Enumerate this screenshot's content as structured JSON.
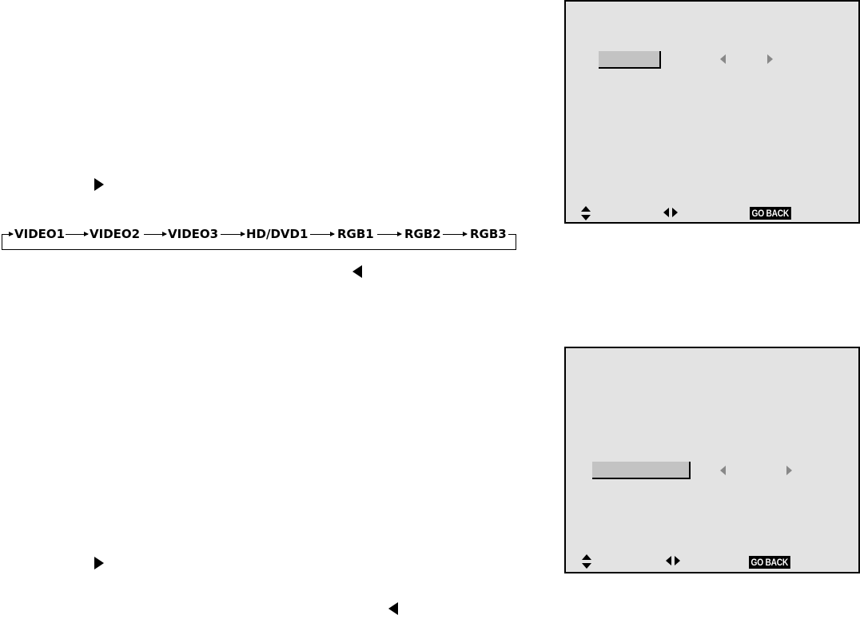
{
  "input_cycle": {
    "items": [
      "VIDEO1",
      "VIDEO2",
      "VIDEO3",
      "HD/DVD1",
      "RGB1",
      "RGB2",
      "RGB3"
    ]
  },
  "osd_top": {
    "go_back_label": "GO BACK"
  },
  "osd_bottom": {
    "go_back_label": "GO BACK"
  },
  "icons": {
    "nav_right": "triangle-right-icon",
    "nav_left": "triangle-left-icon",
    "select": "up-down-arrow-icon",
    "adjust": "left-right-arrow-icon"
  },
  "colors": {
    "osd_background": "#e3e3e3",
    "highlight": "#c3c3c3"
  }
}
